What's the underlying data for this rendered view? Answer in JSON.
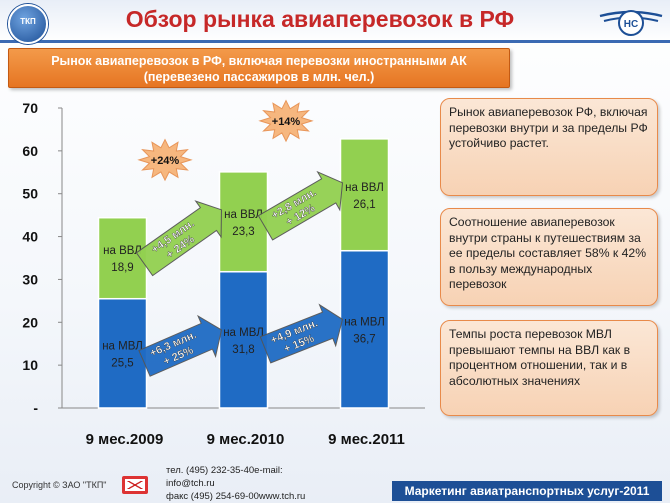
{
  "header": {
    "title": "Обзор рынка авиаперевозок в РФ",
    "logo_left_text": "ТКП"
  },
  "subtitle": {
    "line1": "Рынок авиаперевозок в РФ, включая перевозки иностранными АК",
    "line2": "(перевезено пассажиров в млн. чел.)"
  },
  "chart_data": {
    "type": "bar",
    "stacked": true,
    "categories": [
      "9 мес.2009",
      "9 мес.2010",
      "9 мес.2011"
    ],
    "series": [
      {
        "name": "МВЛ",
        "labels": [
          "на МВЛ\n25,5",
          "на МВЛ\n31,8",
          "на МВЛ\n36,7"
        ],
        "values": [
          25.5,
          31.8,
          36.7
        ],
        "color": "#1f6bc4"
      },
      {
        "name": "ВВЛ",
        "labels": [
          "на ВВЛ\n18,9",
          "на ВВЛ\n23,3",
          "на ВВЛ\n26,1"
        ],
        "values": [
          18.9,
          23.3,
          26.1
        ],
        "color": "#92d050"
      }
    ],
    "ylim": [
      0,
      70
    ],
    "yticks": [
      "-",
      "10",
      "20",
      "30",
      "40",
      "50",
      "60",
      "70"
    ],
    "growth_arrows": [
      {
        "series": "ВВЛ",
        "label": "+4,5 млн.\n+ 24%",
        "color": "#92d050"
      },
      {
        "series": "ВВЛ",
        "label": "+2,8 млн.\n+ 12%",
        "color": "#92d050"
      },
      {
        "series": "МВЛ",
        "label": "+6,3 млн.\n+ 25%",
        "color": "#1f6bc4"
      },
      {
        "series": "МВЛ",
        "label": "+4,9 млн.\n+ 15%",
        "color": "#1f6bc4"
      }
    ],
    "total_growth": [
      "+24%",
      "+14%"
    ]
  },
  "side_boxes": [
    "Рынок авиаперевозок РФ, включая перевозки внутри и за пределы РФ устойчиво растет.",
    "Соотношение авиаперевозок внутри страны к путешествиям за ее пределы составляет 58% к 42% в пользу международных перевозок",
    "Темпы роста перевозок МВЛ превышают темпы на ВВЛ как в процентном отношении, так и в абсолютных значениях"
  ],
  "footer": {
    "copyright": "Copyright © ЗАО \"ТКП\"",
    "phone": "тел.  (495) 232-35-40e-mail:",
    "email": "info@tch.ru",
    "fax": "факс (495) 254-69-00www.tch.ru",
    "brand": "Маркетинг авиатранспортных услуг-2011"
  },
  "colors": {
    "accent": "#c62828",
    "brand_blue": "#1d4f96",
    "orange": "#e67522"
  }
}
